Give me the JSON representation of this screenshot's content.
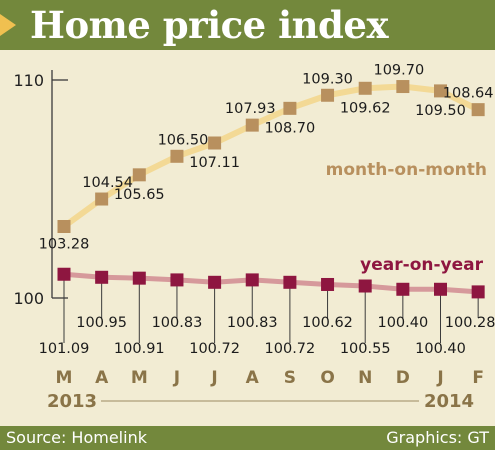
{
  "header": {
    "title": "Home price index"
  },
  "footer": {
    "source": "Source: Homelink",
    "credit": "Graphics: GT"
  },
  "colors": {
    "band": "#73883c",
    "background": "#f2ecd3",
    "mom": "#b8905e",
    "mom_line": "#f3d995",
    "yoy": "#8e1640",
    "yoy_line": "#d6999b",
    "axis": "#3b3b3b",
    "accent": "#f0c050"
  },
  "chart_data": {
    "type": "line",
    "title": "Home price index",
    "categories": [
      "M",
      "A",
      "M",
      "J",
      "J",
      "A",
      "S",
      "O",
      "N",
      "D",
      "J",
      "F"
    ],
    "year_labels": [
      "2013",
      "2014"
    ],
    "xlabel": "",
    "ylabel": "",
    "yticks": [
      "110",
      "100"
    ],
    "ylim": [
      100,
      110
    ],
    "grid": false,
    "series": [
      {
        "name": "month-on-month",
        "values": [
          103.28,
          104.54,
          105.65,
          106.5,
          107.11,
          107.93,
          108.7,
          109.3,
          109.62,
          109.7,
          109.5,
          108.64
        ],
        "labels": [
          "103.28",
          "104.54",
          "105.65",
          "106.50",
          "107.11",
          "107.93",
          "108.70",
          "109.30",
          "109.62",
          "109.70",
          "109.50",
          "108.64"
        ]
      },
      {
        "name": "year-on-year",
        "values": [
          101.09,
          100.95,
          100.91,
          100.83,
          100.72,
          100.83,
          100.72,
          100.62,
          100.55,
          100.4,
          100.4,
          100.28
        ],
        "labels": [
          "101.09",
          "100.95",
          "100.91",
          "100.83",
          "100.72",
          "100.83",
          "100.72",
          "100.62",
          "100.55",
          "100.40",
          "100.40",
          "100.28"
        ]
      }
    ]
  }
}
